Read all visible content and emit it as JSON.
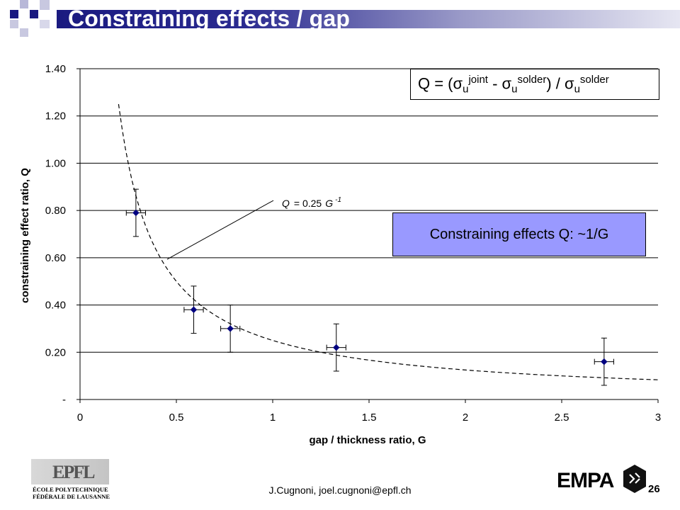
{
  "slide": {
    "title": "Constraining effects / gap",
    "footer": "J.Cugnoni, joel.cugnoni@epfl.ch",
    "page_number": "26",
    "epfl_mark": "EPFL",
    "epfl_line1": "ÉCOLE POLYTECHNIQUE",
    "epfl_line2": "FÉDÉRALE DE LAUSANNE",
    "empa_logo": "EMPA"
  },
  "formula": {
    "prefix": "Q = (",
    "sigma1": "σ",
    "sub1": "u",
    "sup1": "joint",
    "minus": " - ",
    "sigma2": "σ",
    "sub2": "u",
    "sup2": "solder",
    "mid": ") / ",
    "sigma3": "σ",
    "sub3": "u",
    "sup3": "solder"
  },
  "note": {
    "text": "Constraining effects Q: ~1/G"
  },
  "colors": {
    "title_bar_dark": "#1a1a80",
    "note_box": "#9999ff",
    "marker": "#000080"
  },
  "chart_data": {
    "type": "scatter",
    "xlabel": "gap / thickness ratio, G",
    "ylabel": "constraining effect ratio, Q",
    "xlim": [
      0,
      3
    ],
    "ylim": [
      0,
      1.4
    ],
    "x_ticks": [
      "0",
      "0.5",
      "1",
      "1.5",
      "2",
      "2.5",
      "3"
    ],
    "y_ticks": [
      "-",
      "0.20",
      "0.40",
      "0.60",
      "0.80",
      "1.00",
      "1.20",
      "1.40"
    ],
    "y_tick_values": [
      0,
      0.2,
      0.4,
      0.6,
      0.8,
      1.0,
      1.2,
      1.4
    ],
    "x_tick_values": [
      0,
      0.5,
      1,
      1.5,
      2,
      2.5,
      3
    ],
    "horizontal_grid": true,
    "points": [
      {
        "x": 0.29,
        "y": 0.79,
        "y_err": 0.1,
        "x_err": 0.05
      },
      {
        "x": 0.59,
        "y": 0.38,
        "y_err": 0.1,
        "x_err": 0.05
      },
      {
        "x": 0.78,
        "y": 0.3,
        "y_err": 0.1,
        "x_err": 0.05
      },
      {
        "x": 1.33,
        "y": 0.22,
        "y_err": 0.1,
        "x_err": 0.05
      },
      {
        "x": 2.72,
        "y": 0.16,
        "y_err": 0.1,
        "x_err": 0.05
      }
    ],
    "fit": {
      "label_lhs": "Q",
      "label_eq": "= 0.25",
      "label_var": "G",
      "label_exp": "-1",
      "coefficient": 0.25,
      "exponent": -1,
      "x_range": [
        0.2,
        3.0
      ],
      "style": "dashed"
    }
  }
}
